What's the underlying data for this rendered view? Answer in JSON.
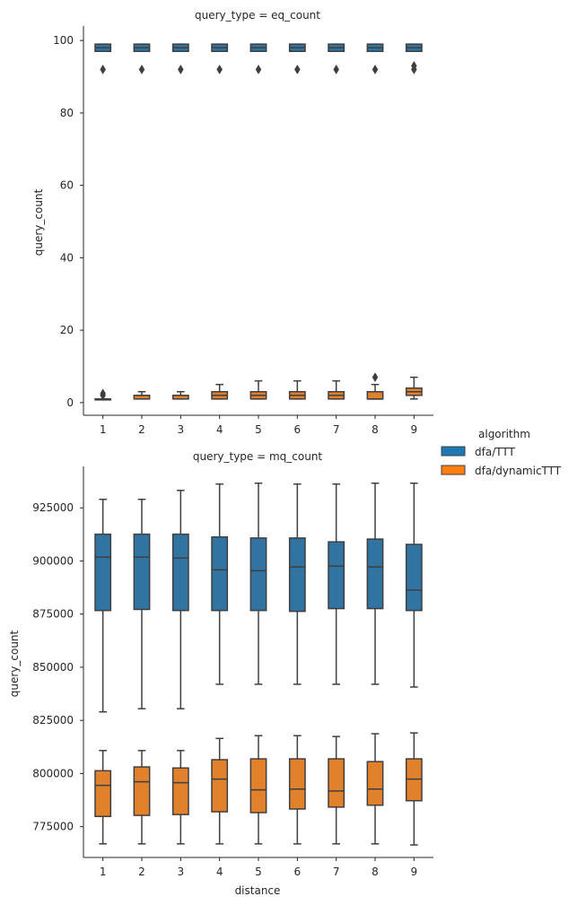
{
  "chart_data": [
    {
      "type": "box",
      "title": "query_type = eq_count",
      "xlabel": "",
      "ylabel": "query_count",
      "categories": [
        "1",
        "2",
        "3",
        "4",
        "5",
        "6",
        "7",
        "8",
        "9"
      ],
      "ylim": [
        -3.5,
        104
      ],
      "yticks": [
        0,
        20,
        40,
        60,
        80,
        100
      ],
      "ytick_labels": [
        "0",
        "20",
        "40",
        "60",
        "80",
        "100"
      ],
      "series": [
        {
          "name": "dfa/TTT",
          "color": "#1f77b4",
          "boxes": [
            {
              "whislo": 97,
              "q1": 97,
              "med": 98,
              "q3": 99,
              "whishi": 99,
              "fliers": [
                92
              ]
            },
            {
              "whislo": 97,
              "q1": 97,
              "med": 98,
              "q3": 99,
              "whishi": 99,
              "fliers": [
                92
              ]
            },
            {
              "whislo": 97,
              "q1": 97,
              "med": 98,
              "q3": 99,
              "whishi": 99,
              "fliers": [
                92
              ]
            },
            {
              "whislo": 97,
              "q1": 97,
              "med": 98,
              "q3": 99,
              "whishi": 99,
              "fliers": [
                92
              ]
            },
            {
              "whislo": 97,
              "q1": 97,
              "med": 98,
              "q3": 99,
              "whishi": 99,
              "fliers": [
                92
              ]
            },
            {
              "whislo": 97,
              "q1": 97,
              "med": 98,
              "q3": 99,
              "whishi": 99,
              "fliers": [
                92
              ]
            },
            {
              "whislo": 97,
              "q1": 97,
              "med": 98,
              "q3": 99,
              "whishi": 99,
              "fliers": [
                92
              ]
            },
            {
              "whislo": 97,
              "q1": 97,
              "med": 98,
              "q3": 99,
              "whishi": 99,
              "fliers": [
                92
              ]
            },
            {
              "whislo": 97,
              "q1": 97,
              "med": 98,
              "q3": 99,
              "whishi": 99,
              "fliers": [
                92,
                93
              ]
            }
          ]
        },
        {
          "name": "dfa/dynamicTTT",
          "color": "#ff7f0e",
          "boxes": [
            {
              "whislo": 1,
              "q1": 1,
              "med": 1,
              "q3": 1,
              "whishi": 1,
              "fliers": [
                2,
                2.5
              ]
            },
            {
              "whislo": 1,
              "q1": 1,
              "med": 2,
              "q3": 2,
              "whishi": 3,
              "fliers": []
            },
            {
              "whislo": 1,
              "q1": 1,
              "med": 2,
              "q3": 2,
              "whishi": 3,
              "fliers": []
            },
            {
              "whislo": 1,
              "q1": 1,
              "med": 2,
              "q3": 3,
              "whishi": 5,
              "fliers": []
            },
            {
              "whislo": 1,
              "q1": 1,
              "med": 2,
              "q3": 3,
              "whishi": 6,
              "fliers": []
            },
            {
              "whislo": 1,
              "q1": 1,
              "med": 2,
              "q3": 3,
              "whishi": 6,
              "fliers": []
            },
            {
              "whislo": 1,
              "q1": 1,
              "med": 2,
              "q3": 3,
              "whishi": 6,
              "fliers": []
            },
            {
              "whislo": 1,
              "q1": 1,
              "med": 1,
              "q3": 3,
              "whishi": 5,
              "fliers": [
                7
              ]
            },
            {
              "whislo": 1,
              "q1": 2,
              "med": 3,
              "q3": 4,
              "whishi": 7,
              "fliers": []
            }
          ]
        }
      ]
    },
    {
      "type": "box",
      "title": "query_type = mq_count",
      "xlabel": "distance",
      "ylabel": "query_count",
      "categories": [
        "1",
        "2",
        "3",
        "4",
        "5",
        "6",
        "7",
        "8",
        "9"
      ],
      "ylim": [
        760500,
        944500
      ],
      "yticks": [
        775000,
        800000,
        825000,
        850000,
        875000,
        900000,
        925000
      ],
      "ytick_labels": [
        "775000",
        "800000",
        "825000",
        "850000",
        "875000",
        "900000",
        "925000"
      ],
      "series": [
        {
          "name": "dfa/TTT",
          "color": "#1f77b4",
          "boxes": [
            {
              "whislo": 829000,
              "q1": 876700,
              "med": 901800,
              "q3": 912600,
              "whishi": 929000,
              "fliers": []
            },
            {
              "whislo": 830500,
              "q1": 877200,
              "med": 901800,
              "q3": 912600,
              "whishi": 929000,
              "fliers": []
            },
            {
              "whislo": 830500,
              "q1": 876700,
              "med": 901400,
              "q3": 912600,
              "whishi": 933200,
              "fliers": []
            },
            {
              "whislo": 842000,
              "q1": 876700,
              "med": 895800,
              "q3": 911300,
              "whishi": 936200,
              "fliers": []
            },
            {
              "whislo": 842000,
              "q1": 876700,
              "med": 895400,
              "q3": 910800,
              "whishi": 936600,
              "fliers": []
            },
            {
              "whislo": 842000,
              "q1": 876300,
              "med": 897200,
              "q3": 910800,
              "whishi": 936200,
              "fliers": []
            },
            {
              "whislo": 842000,
              "q1": 877600,
              "med": 897600,
              "q3": 909000,
              "whishi": 936200,
              "fliers": []
            },
            {
              "whislo": 842000,
              "q1": 877600,
              "med": 897200,
              "q3": 910300,
              "whishi": 936600,
              "fliers": []
            },
            {
              "whislo": 840700,
              "q1": 876700,
              "med": 886300,
              "q3": 907800,
              "whishi": 936600,
              "fliers": []
            }
          ]
        },
        {
          "name": "dfa/dynamicTTT",
          "color": "#ff7f0e",
          "boxes": [
            {
              "whislo": 766900,
              "q1": 779800,
              "med": 794400,
              "q3": 801300,
              "whishi": 810800,
              "fliers": []
            },
            {
              "whislo": 766900,
              "q1": 780300,
              "med": 796100,
              "q3": 803100,
              "whishi": 810800,
              "fliers": []
            },
            {
              "whislo": 766900,
              "q1": 780700,
              "med": 795700,
              "q3": 802600,
              "whishi": 810800,
              "fliers": []
            },
            {
              "whislo": 766900,
              "q1": 782000,
              "med": 797400,
              "q3": 806500,
              "whishi": 816500,
              "fliers": []
            },
            {
              "whislo": 766900,
              "q1": 781600,
              "med": 792300,
              "q3": 806900,
              "whishi": 817800,
              "fliers": []
            },
            {
              "whislo": 766900,
              "q1": 783300,
              "med": 792700,
              "q3": 806900,
              "whishi": 817800,
              "fliers": []
            },
            {
              "whislo": 766900,
              "q1": 784200,
              "med": 791800,
              "q3": 806900,
              "whishi": 817400,
              "fliers": []
            },
            {
              "whislo": 766900,
              "q1": 785100,
              "med": 792700,
              "q3": 805600,
              "whishi": 818700,
              "fliers": []
            },
            {
              "whislo": 766400,
              "q1": 787200,
              "med": 797400,
              "q3": 806900,
              "whishi": 819100,
              "fliers": []
            }
          ]
        }
      ]
    }
  ],
  "legend": {
    "title": "algorithm",
    "placement": "right",
    "entries": [
      {
        "label": "dfa/TTT",
        "color": "#1f77b4"
      },
      {
        "label": "dfa/dynamicTTT",
        "color": "#ff7f0e"
      }
    ]
  }
}
